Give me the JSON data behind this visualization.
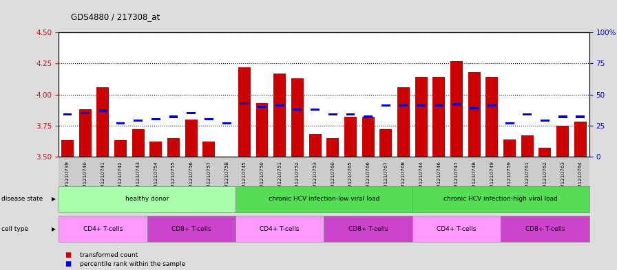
{
  "title": "GDS4880 / 217308_at",
  "ylim": [
    3.5,
    4.5
  ],
  "yticks": [
    3.5,
    3.75,
    4.0,
    4.25,
    4.5
  ],
  "right_yticks": [
    0,
    25,
    50,
    75,
    100
  ],
  "right_ylabels": [
    "0",
    "25",
    "50",
    "75",
    "100%"
  ],
  "bar_bottom": 3.5,
  "samples": [
    "GSM1210739",
    "GSM1210740",
    "GSM1210741",
    "GSM1210742",
    "GSM1210743",
    "GSM1210754",
    "GSM1210755",
    "GSM1210756",
    "GSM1210757",
    "GSM1210758",
    "GSM1210745",
    "GSM1210750",
    "GSM1210751",
    "GSM1210752",
    "GSM1210753",
    "GSM1210760",
    "GSM1210765",
    "GSM1210766",
    "GSM1210767",
    "GSM1210768",
    "GSM1210744",
    "GSM1210746",
    "GSM1210747",
    "GSM1210748",
    "GSM1210749",
    "GSM1210759",
    "GSM1210761",
    "GSM1210762",
    "GSM1210763",
    "GSM1210764"
  ],
  "bar_values": [
    3.63,
    3.88,
    4.06,
    3.63,
    3.72,
    3.62,
    3.65,
    3.8,
    3.62,
    3.47,
    4.22,
    3.93,
    4.17,
    4.13,
    3.68,
    3.65,
    3.82,
    3.82,
    3.72,
    4.06,
    4.14,
    4.14,
    4.27,
    4.18,
    4.14,
    3.64,
    3.67,
    3.57,
    3.75,
    3.78
  ],
  "percentile_values": [
    3.84,
    3.85,
    3.87,
    3.77,
    3.79,
    3.8,
    3.82,
    3.85,
    3.8,
    3.77,
    3.93,
    3.9,
    3.91,
    3.88,
    3.88,
    3.84,
    3.84,
    3.82,
    3.91,
    3.91,
    3.91,
    3.91,
    3.92,
    3.89,
    3.91,
    3.77,
    3.84,
    3.79,
    3.82,
    3.82
  ],
  "bar_color": "#cc0000",
  "percentile_color": "#0000cc",
  "disease_groups": [
    {
      "label": "healthy donor",
      "start": 0,
      "end": 10,
      "color": "#aaffaa"
    },
    {
      "label": "chronic HCV infection-low viral load",
      "start": 10,
      "end": 20,
      "color": "#55dd55"
    },
    {
      "label": "chronic HCV infection-high viral load",
      "start": 20,
      "end": 30,
      "color": "#55dd55"
    }
  ],
  "cell_type_groups": [
    {
      "label": "CD4+ T-cells",
      "start": 0,
      "end": 5,
      "color": "#ff99ff"
    },
    {
      "label": "CD8+ T-cells",
      "start": 5,
      "end": 10,
      "color": "#cc44cc"
    },
    {
      "label": "CD4+ T-cells",
      "start": 10,
      "end": 15,
      "color": "#ff99ff"
    },
    {
      "label": "CD8+ T-cells",
      "start": 15,
      "end": 20,
      "color": "#cc44cc"
    },
    {
      "label": "CD4+ T-cells",
      "start": 20,
      "end": 25,
      "color": "#ff99ff"
    },
    {
      "label": "CD8+ T-cells",
      "start": 25,
      "end": 30,
      "color": "#cc44cc"
    }
  ],
  "disease_state_label": "disease state",
  "cell_type_label": "cell type",
  "legend_items": [
    {
      "label": "transformed count",
      "color": "#cc0000"
    },
    {
      "label": "percentile rank within the sample",
      "color": "#0000cc"
    }
  ],
  "bg_color": "#dddddd",
  "plot_bg_color": "#ffffff",
  "xtick_bg_color": "#cccccc"
}
